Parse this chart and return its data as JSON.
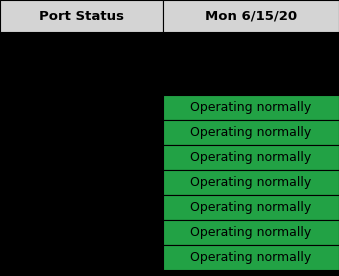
{
  "col1_header": "Port Status",
  "col2_header": "Mon 6/15/20",
  "rows": [
    {
      "port": "",
      "status": "Operating normally"
    },
    {
      "port": "",
      "status": "Operating normally"
    },
    {
      "port": "",
      "status": "Operating normally"
    },
    {
      "port": "",
      "status": "Operating normally"
    },
    {
      "port": "",
      "status": "Operating normally"
    },
    {
      "port": "",
      "status": "Operating normally"
    },
    {
      "port": "",
      "status": "Operating normally"
    }
  ],
  "header_bg": "#d4d4d4",
  "header_text_color": "#000000",
  "cell_bg_green": "#22a245",
  "cell_bg_black": "#000000",
  "cell_text_color": "#000000",
  "border_color": "#000000",
  "fig_bg": "#000000",
  "header_fontsize": 9.5,
  "cell_fontsize": 9
}
